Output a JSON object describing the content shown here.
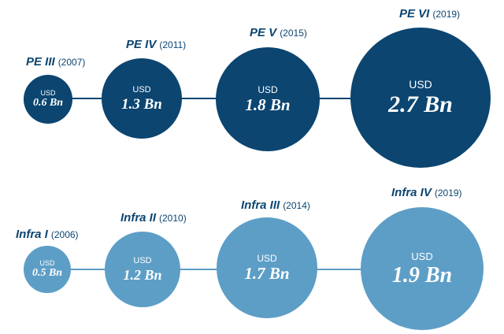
{
  "colors": {
    "pe": "#0b4570",
    "infra": "#5d9ec6"
  },
  "pe_funds": [
    {
      "name": "PE III",
      "year": "(2007)",
      "currency": "USD",
      "amount": "0.6 Bn"
    },
    {
      "name": "PE IV",
      "year": "(2011)",
      "currency": "USD",
      "amount": "1.3 Bn"
    },
    {
      "name": "PE V",
      "year": "(2015)",
      "currency": "USD",
      "amount": "1.8 Bn"
    },
    {
      "name": "PE VI",
      "year": "(2019)",
      "currency": "USD",
      "amount": "2.7 Bn"
    }
  ],
  "infra_funds": [
    {
      "name": "Infra I",
      "year": "(2006)",
      "currency": "USD",
      "amount": "0.5 Bn"
    },
    {
      "name": "Infra II",
      "year": "(2010)",
      "currency": "USD",
      "amount": "1.2 Bn"
    },
    {
      "name": "Infra III",
      "year": "(2014)",
      "currency": "USD",
      "amount": "1.7 Bn"
    },
    {
      "name": "Infra IV",
      "year": "(2019)",
      "currency": "USD",
      "amount": "1.9 Bn"
    }
  ]
}
